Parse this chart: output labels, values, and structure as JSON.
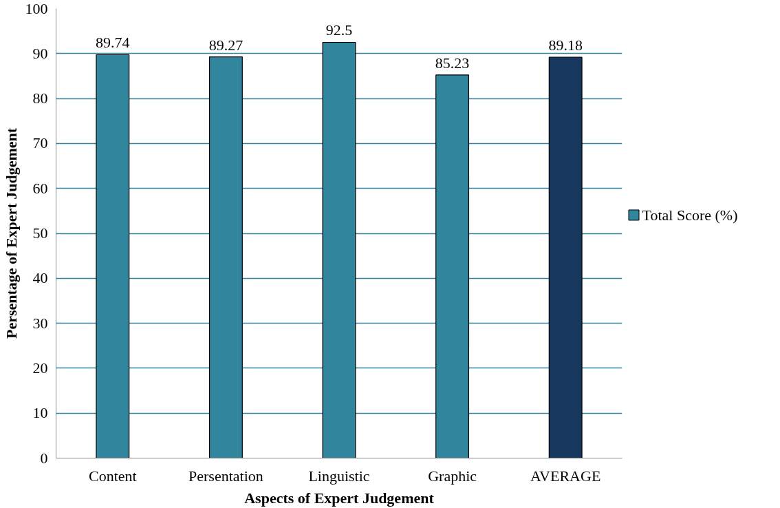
{
  "chart_data": {
    "type": "bar",
    "xlabel": "Aspects of Expert Judgement",
    "ylabel": "Persentage of Expert Judgement",
    "categories": [
      "Content",
      "Persentation",
      "Linguistic",
      "Graphic",
      "AVERAGE"
    ],
    "series": [
      {
        "name": "Total Score (%)",
        "values": [
          89.74,
          89.27,
          92.5,
          85.23,
          89.18
        ],
        "colors": [
          "#31859c",
          "#31859c",
          "#31859c",
          "#31859c",
          "#17375e"
        ]
      }
    ],
    "ylim": [
      0,
      100
    ],
    "yticks": [
      0,
      10,
      20,
      30,
      40,
      50,
      60,
      70,
      80,
      90,
      100
    ],
    "grid": "y",
    "legend": "right",
    "data_labels": true
  }
}
